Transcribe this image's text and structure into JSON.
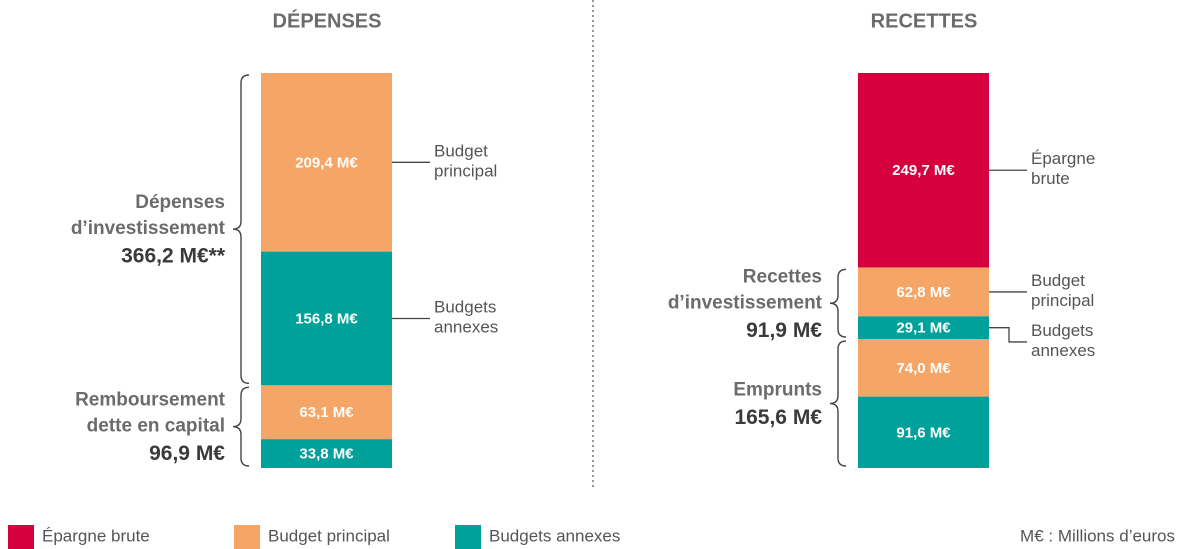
{
  "chart_data": [
    {
      "type": "stacked-bar",
      "title": "DÉPENSES",
      "groups": [
        {
          "label": [
            "Dépenses",
            "d’investissement"
          ],
          "total": "366,2 M€**",
          "segments": [
            {
              "value": 209.4,
              "value_label": "209,4 M€",
              "color": "#f5a565",
              "label": "Budget principal"
            },
            {
              "value": 156.8,
              "value_label": "156,8 M€",
              "color": "#00a19a",
              "label": "Budgets annexes"
            }
          ]
        },
        {
          "label": [
            "Remboursement",
            "dette en capital"
          ],
          "total": "96,9 M€",
          "segments": [
            {
              "value": 63.1,
              "value_label": "63,1 M€",
              "color": "#f5a565"
            },
            {
              "value": 33.8,
              "value_label": "33,8 M€",
              "color": "#00a19a"
            }
          ]
        }
      ]
    },
    {
      "type": "stacked-bar",
      "title": "RECETTES",
      "groups": [
        {
          "segments": [
            {
              "value": 249.7,
              "value_label": "249,7 M€",
              "color": "#d6003f",
              "label": "Épargne brute"
            }
          ]
        },
        {
          "label": [
            "Recettes",
            "d’investissement"
          ],
          "total": "91,9 M€",
          "segments": [
            {
              "value": 62.8,
              "value_label": "62,8 M€",
              "color": "#f5a565",
              "label": "Budget principal"
            },
            {
              "value": 29.1,
              "value_label": "29,1 M€",
              "color": "#00a19a",
              "label": "Budgets annexes"
            }
          ]
        },
        {
          "label": [
            "Emprunts"
          ],
          "total": "165,6 M€",
          "segments": [
            {
              "value": 74.0,
              "value_label": "74,0 M€",
              "color": "#f5a565"
            },
            {
              "value": 91.6,
              "value_label": "91,6 M€",
              "color": "#00a19a"
            }
          ]
        }
      ]
    }
  ],
  "legend": [
    {
      "name": "Épargne brute",
      "color": "#d6003f"
    },
    {
      "name": "Budget principal",
      "color": "#f5a565"
    },
    {
      "name": "Budgets annexes",
      "color": "#00a19a"
    }
  ],
  "note": "M€ : Millions d’euros"
}
